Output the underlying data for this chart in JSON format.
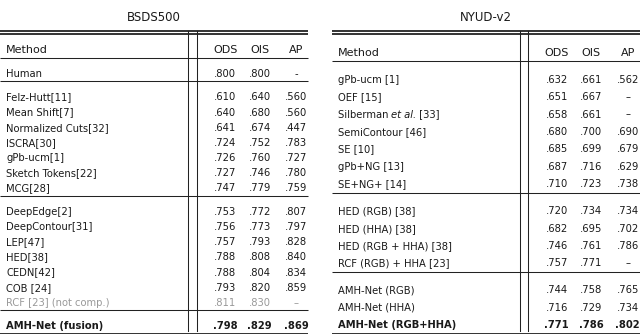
{
  "title_left": "BSDS500",
  "title_right": "NYUD-v2",
  "left_table": {
    "sections": [
      {
        "rows": [
          {
            "method": "Human",
            "ods": ".800",
            "ois": ".800",
            "ap": "-",
            "bold": false,
            "gray": false,
            "italic_et_al": false
          }
        ]
      },
      {
        "rows": [
          {
            "method": "Felz-Hutt[11]",
            "ods": ".610",
            "ois": ".640",
            "ap": ".560",
            "bold": false,
            "gray": false,
            "italic_et_al": false
          },
          {
            "method": "Mean Shift[7]",
            "ods": ".640",
            "ois": ".680",
            "ap": ".560",
            "bold": false,
            "gray": false,
            "italic_et_al": false
          },
          {
            "method": "Normalized Cuts[32]",
            "ods": ".641",
            "ois": ".674",
            "ap": ".447",
            "bold": false,
            "gray": false,
            "italic_et_al": false
          },
          {
            "method": "ISCRA[30]",
            "ods": ".724",
            "ois": ".752",
            "ap": ".783",
            "bold": false,
            "gray": false,
            "italic_et_al": false
          },
          {
            "method": "gPb-ucm[1]",
            "ods": ".726",
            "ois": ".760",
            "ap": ".727",
            "bold": false,
            "gray": false,
            "italic_et_al": false
          },
          {
            "method": "Sketch Tokens[22]",
            "ods": ".727",
            "ois": ".746",
            "ap": ".780",
            "bold": false,
            "gray": false,
            "italic_et_al": false
          },
          {
            "method": "MCG[28]",
            "ods": ".747",
            "ois": ".779",
            "ap": ".759",
            "bold": false,
            "gray": false,
            "italic_et_al": false
          }
        ]
      },
      {
        "rows": [
          {
            "method": "DeepEdge[2]",
            "ods": ".753",
            "ois": ".772",
            "ap": ".807",
            "bold": false,
            "gray": false,
            "italic_et_al": false
          },
          {
            "method": "DeepContour[31]",
            "ods": ".756",
            "ois": ".773",
            "ap": ".797",
            "bold": false,
            "gray": false,
            "italic_et_al": false
          },
          {
            "method": "LEP[47]",
            "ods": ".757",
            "ois": ".793",
            "ap": ".828",
            "bold": false,
            "gray": false,
            "italic_et_al": false
          },
          {
            "method": "HED[38]",
            "ods": ".788",
            "ois": ".808",
            "ap": ".840",
            "bold": false,
            "gray": false,
            "italic_et_al": false
          },
          {
            "method": "CEDN[42]",
            "ods": ".788",
            "ois": ".804",
            "ap": ".834",
            "bold": false,
            "gray": false,
            "italic_et_al": false
          },
          {
            "method": "COB [24]",
            "ods": ".793",
            "ois": ".820",
            "ap": ".859",
            "bold": false,
            "gray": false,
            "italic_et_al": false
          },
          {
            "method": "RCF [23] (not comp.)",
            "ods": ".811",
            "ois": ".830",
            "ap": "–",
            "bold": false,
            "gray": true,
            "italic_et_al": false
          }
        ]
      },
      {
        "rows": [
          {
            "method": "AMH-Net (fusion)",
            "ods": ".798",
            "ois": ".829",
            "ap": ".869",
            "bold": true,
            "gray": false,
            "italic_et_al": false
          }
        ]
      }
    ]
  },
  "right_table": {
    "sections": [
      {
        "rows": [
          {
            "method": "gPb-ucm [1]",
            "ods": ".632",
            "ois": ".661",
            "ap": ".562",
            "bold": false,
            "gray": false,
            "italic_et_al": false
          },
          {
            "method": "OEF [15]",
            "ods": ".651",
            "ois": ".667",
            "ap": "–",
            "bold": false,
            "gray": false,
            "italic_et_al": false
          },
          {
            "method_pre": "Silberman ",
            "method_italic": "et al.",
            "method_post": " [33]",
            "ods": ".658",
            "ois": ".661",
            "ap": "–",
            "bold": false,
            "gray": false,
            "italic_et_al": true
          },
          {
            "method": "SemiContour [46]",
            "ods": ".680",
            "ois": ".700",
            "ap": ".690",
            "bold": false,
            "gray": false,
            "italic_et_al": false
          },
          {
            "method": "SE [10]",
            "ods": ".685",
            "ois": ".699",
            "ap": ".679",
            "bold": false,
            "gray": false,
            "italic_et_al": false
          },
          {
            "method": "gPb+NG [13]",
            "ods": ".687",
            "ois": ".716",
            "ap": ".629",
            "bold": false,
            "gray": false,
            "italic_et_al": false
          },
          {
            "method": "SE+NG+ [14]",
            "ods": ".710",
            "ois": ".723",
            "ap": ".738",
            "bold": false,
            "gray": false,
            "italic_et_al": false
          }
        ]
      },
      {
        "rows": [
          {
            "method": "HED (RGB) [38]",
            "ods": ".720",
            "ois": ".734",
            "ap": ".734",
            "bold": false,
            "gray": false,
            "italic_et_al": false
          },
          {
            "method": "HED (HHA) [38]",
            "ods": ".682",
            "ois": ".695",
            "ap": ".702",
            "bold": false,
            "gray": false,
            "italic_et_al": false
          },
          {
            "method": "HED (RGB + HHA) [38]",
            "ods": ".746",
            "ois": ".761",
            "ap": ".786",
            "bold": false,
            "gray": false,
            "italic_et_al": false
          },
          {
            "method": "RCF (RGB) + HHA [23]",
            "ods": ".757",
            "ois": ".771",
            "ap": "–",
            "bold": false,
            "gray": false,
            "italic_et_al": false
          }
        ]
      },
      {
        "rows": [
          {
            "method": "AMH-Net (RGB)",
            "ods": ".744",
            "ois": ".758",
            "ap": ".765",
            "bold": false,
            "gray": false,
            "italic_et_al": false
          },
          {
            "method": "AMH-Net (HHA)",
            "ods": ".716",
            "ois": ".729",
            "ap": ".734",
            "bold": false,
            "gray": false,
            "italic_et_al": false
          },
          {
            "method": "AMH-Net (RGB+HHA)",
            "ods": ".771",
            "ois": ".786",
            "ap": ".802",
            "bold": true,
            "gray": false,
            "italic_et_al": false
          }
        ]
      }
    ]
  },
  "text_color": "#1a1a1a",
  "gray_color": "#999999",
  "line_color": "#222222",
  "font_size": 7.2,
  "header_font_size": 8.0,
  "title_font_size": 8.5
}
